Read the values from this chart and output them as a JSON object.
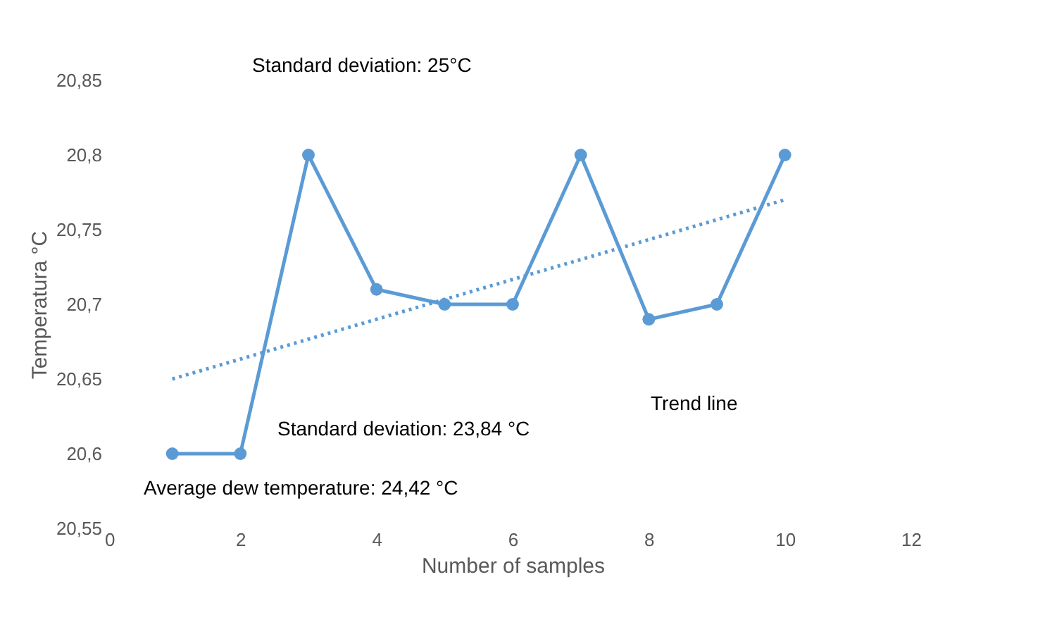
{
  "chart_data": {
    "type": "line",
    "xlabel": "Number of samples",
    "ylabel": "Temperatura °C",
    "x": [
      1,
      2,
      3,
      4,
      5,
      6,
      7,
      8,
      9,
      10
    ],
    "series": [
      {
        "color": "#5b9bd5",
        "values": [
          20.6,
          20.6,
          20.8,
          20.71,
          20.7,
          20.7,
          20.8,
          20.69,
          20.7,
          20.8
        ],
        "marker": "circle",
        "line_style": "solid"
      },
      {
        "type": "line",
        "x": [
          1,
          10
        ],
        "color": "#5b9bd5",
        "values": [
          20.65,
          20.77
        ],
        "marker": "none",
        "line_style": "dotted"
      }
    ],
    "xlim": [
      0,
      12
    ],
    "xticks": [
      0,
      2,
      4,
      6,
      8,
      10,
      12
    ],
    "ylim": [
      20.55,
      20.85
    ],
    "yticks": [
      {
        "value": 20.55,
        "label": "20,55"
      },
      {
        "value": 20.6,
        "label": "20,6"
      },
      {
        "value": 20.65,
        "label": "20,65"
      },
      {
        "value": 20.7,
        "label": "20,7"
      },
      {
        "value": 20.75,
        "label": "20,75"
      },
      {
        "value": 20.8,
        "label": "20,8"
      },
      {
        "value": 20.85,
        "label": "20,85"
      }
    ],
    "annotations": [
      "Standard deviation: 25°C",
      "Standard deviation: 23,84 °C",
      "Average dew temperature: 24,42 °C",
      "Trend line"
    ],
    "grid": false
  }
}
